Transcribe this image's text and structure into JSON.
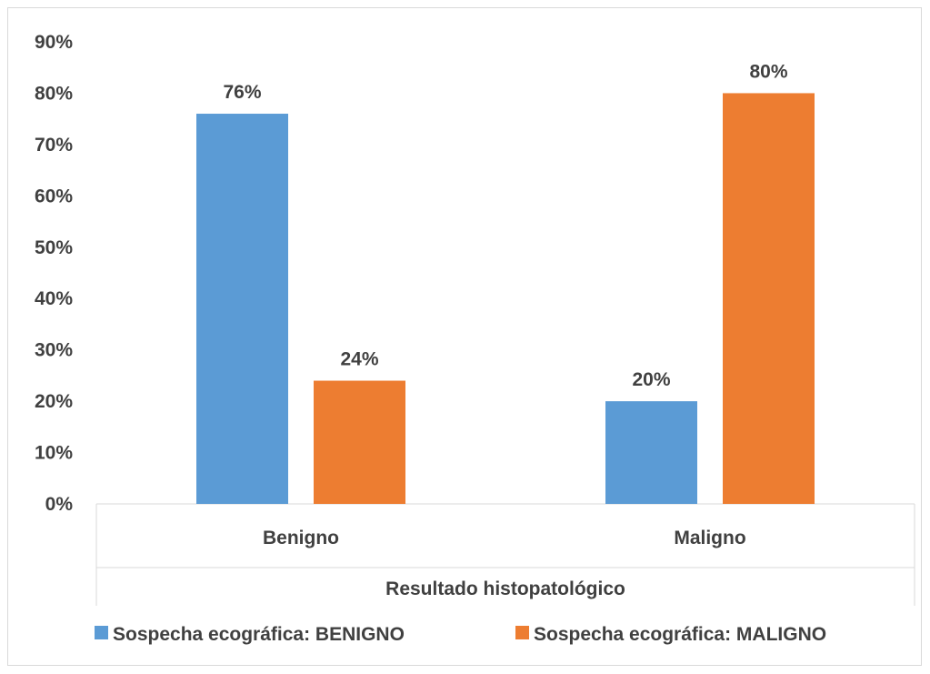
{
  "chart_data": {
    "type": "bar",
    "categories": [
      "Benigno",
      "Maligno"
    ],
    "series": [
      {
        "name": "Sospecha ecográfica: BENIGNO",
        "values": [
          76,
          20
        ],
        "color": "#5B9BD5",
        "labels": [
          "76%",
          "20%"
        ]
      },
      {
        "name": "Sospecha ecográfica: MALIGNO",
        "values": [
          24,
          80
        ],
        "color": "#ED7D31",
        "labels": [
          "24%",
          "80%"
        ]
      }
    ],
    "title": "",
    "xlabel": "Resultado histopatológico",
    "ylabel": "",
    "ylim": [
      0,
      90
    ],
    "yticks": [
      "0%",
      "10%",
      "20%",
      "30%",
      "40%",
      "50%",
      "60%",
      "70%",
      "80%",
      "90%"
    ],
    "grid": false,
    "legend": "bottom"
  }
}
